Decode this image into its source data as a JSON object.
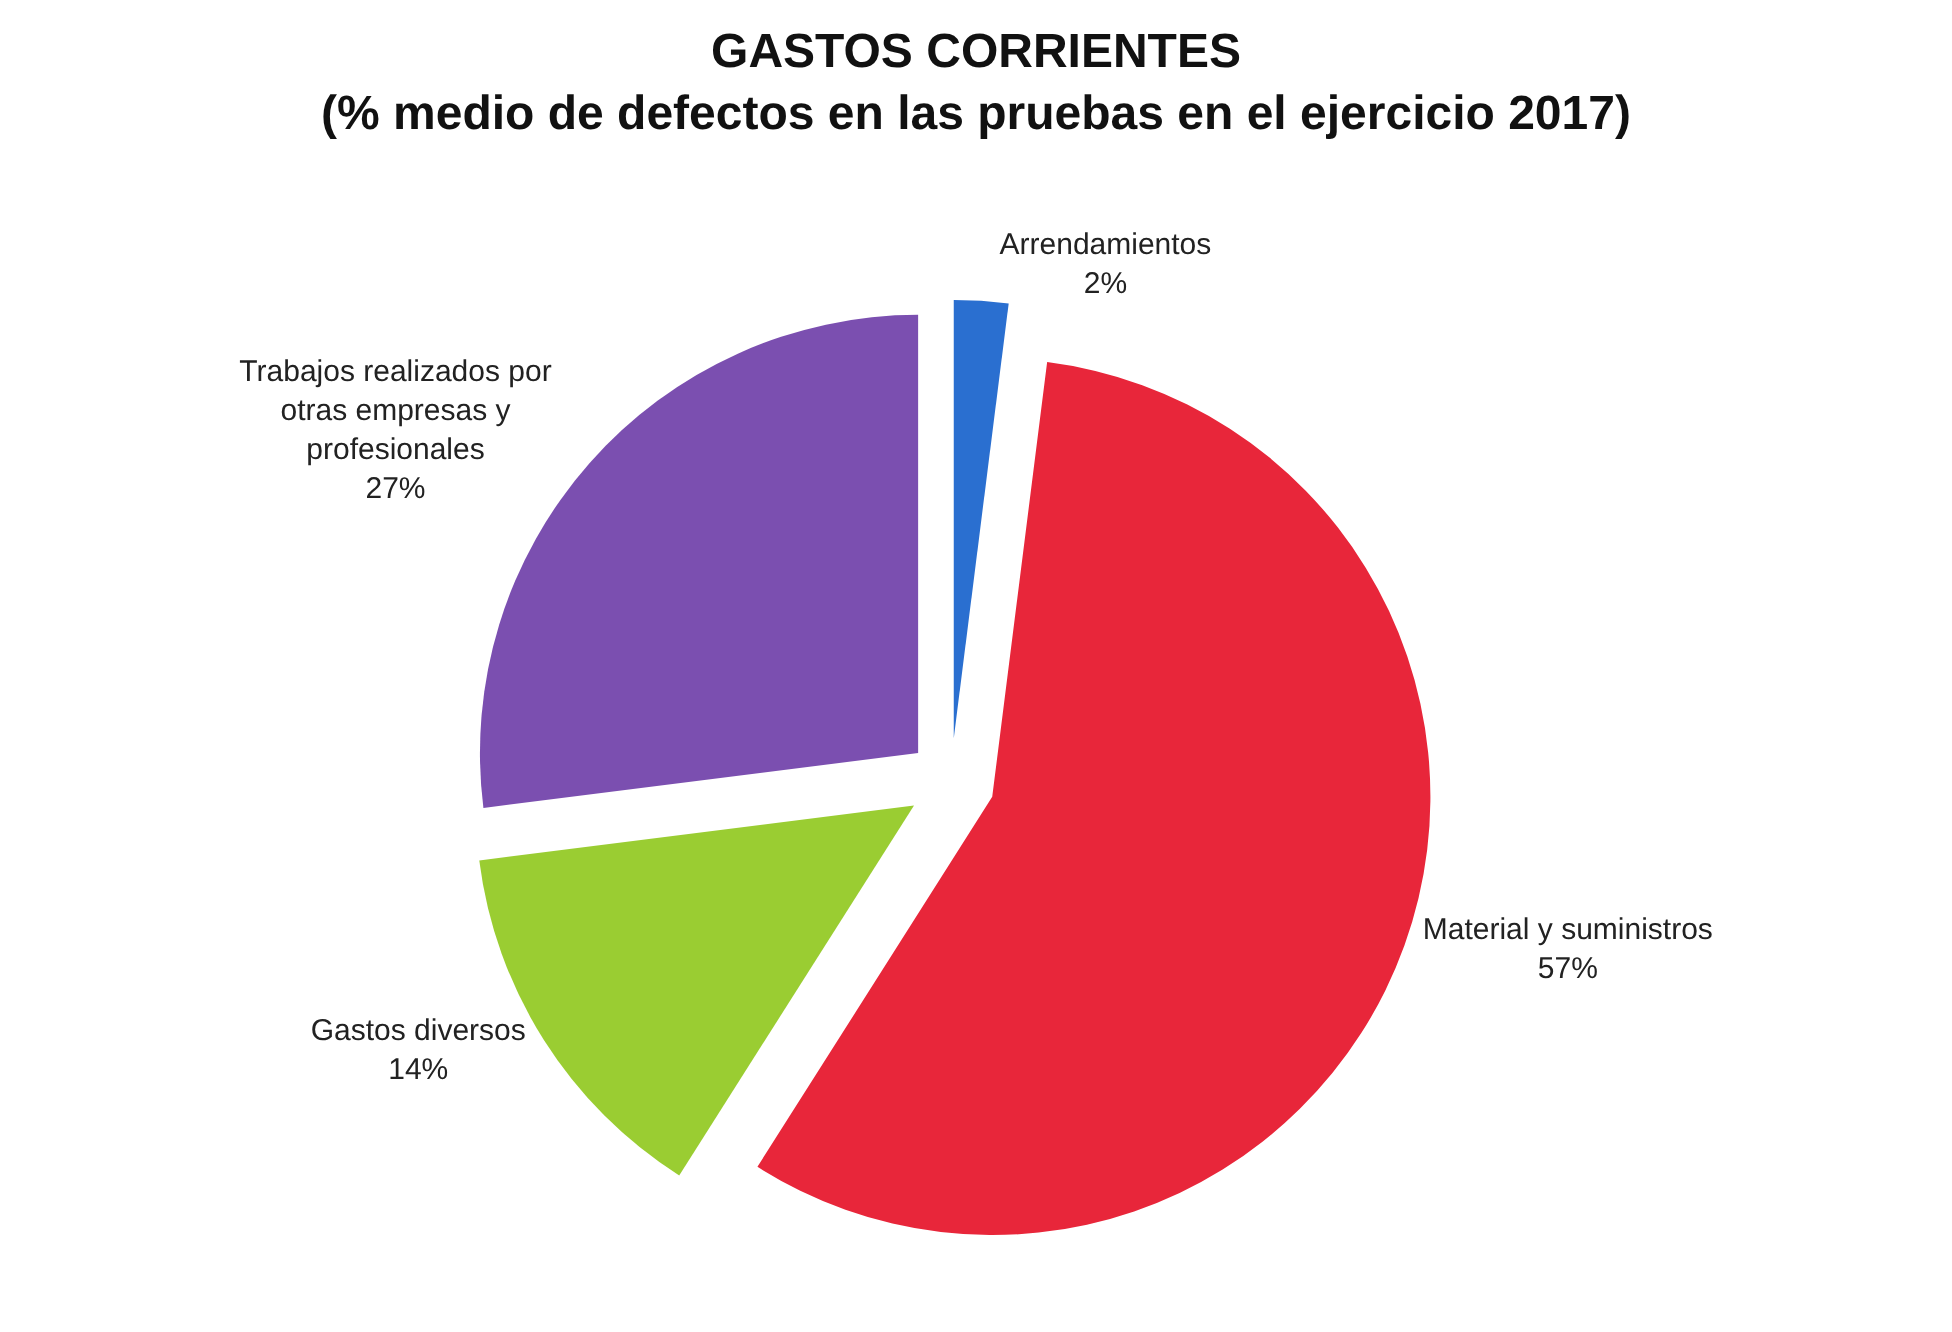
{
  "chart_data": {
    "type": "pie",
    "title": "GASTOS CORRIENTES",
    "subtitle": "(% medio de defectos en las pruebas en el ejercicio 2017)",
    "categories": [
      "Arrendamientos",
      "Material y suministros",
      "Gastos diversos",
      "Trabajos realizados por otras empresas y profesionales"
    ],
    "values": [
      2,
      57,
      14,
      27
    ],
    "value_labels": [
      "2%",
      "57%",
      "14%",
      "27%"
    ],
    "colors": [
      "#2a6fd0",
      "#e8263a",
      "#9acd32",
      "#7b4fb0"
    ],
    "legend": false
  }
}
